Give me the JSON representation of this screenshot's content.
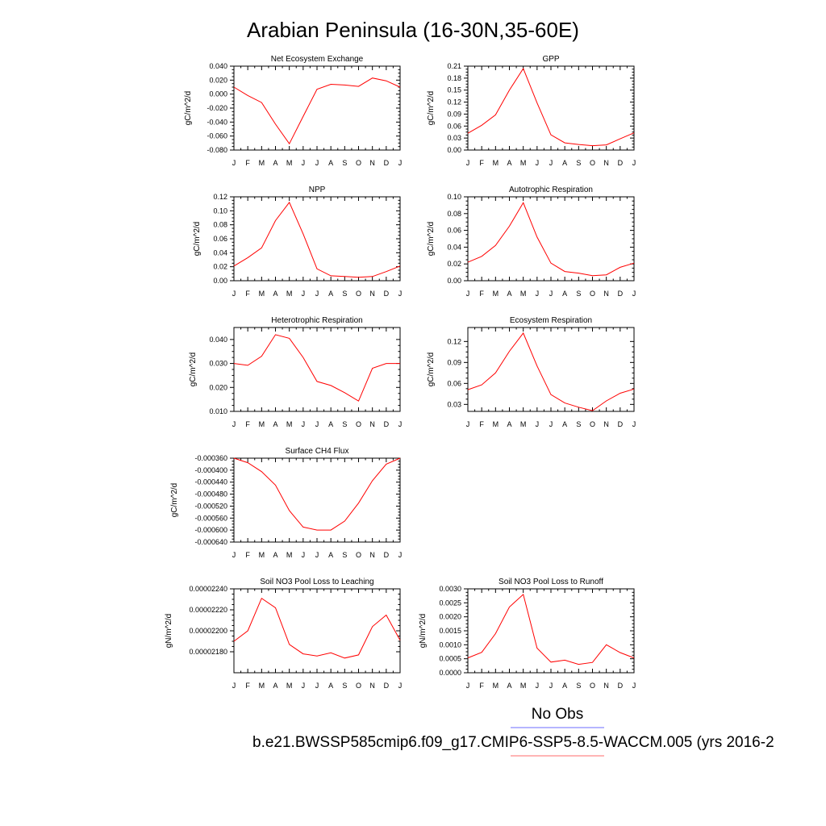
{
  "page": {
    "title": "Arabian Peninsula (16-30N,35-60E)",
    "legend": {
      "obs_label": "No Obs",
      "obs_color": "#6b6bff",
      "model_color": "#ff6b6b"
    },
    "caption": "b.e21.BWSSP585cmip6.f09_g17.CMIP6-SSP5-8.5-WACCM.005 (yrs 2016-2"
  },
  "chart_data": [
    {
      "type": "line",
      "title": "Net Ecosystem Exchange",
      "ylabel": "gC/m^2/d",
      "x": [
        "J",
        "F",
        "M",
        "A",
        "M",
        "J",
        "J",
        "A",
        "S",
        "O",
        "N",
        "D",
        "J"
      ],
      "ylim": [
        -0.08,
        0.04
      ],
      "yticks": [
        -0.08,
        -0.06,
        -0.04,
        -0.02,
        0.0,
        0.02,
        0.04
      ],
      "ytick_labels": [
        "-0.080",
        "-0.060",
        "-0.040",
        "-0.020",
        "0.000",
        "0.020",
        "0.040"
      ],
      "series": [
        {
          "color": "#ff0000",
          "values": [
            0.01,
            -0.002,
            -0.012,
            -0.043,
            -0.071,
            -0.032,
            0.007,
            0.014,
            0.013,
            0.011,
            0.023,
            0.019,
            0.01
          ]
        }
      ]
    },
    {
      "type": "line",
      "title": "GPP",
      "ylabel": "gC/m^2/d",
      "x": [
        "J",
        "F",
        "M",
        "A",
        "M",
        "J",
        "J",
        "A",
        "S",
        "O",
        "N",
        "D",
        "J"
      ],
      "ylim": [
        0.0,
        0.21
      ],
      "yticks": [
        0.0,
        0.03,
        0.06,
        0.09,
        0.12,
        0.15,
        0.18,
        0.21
      ],
      "ytick_labels": [
        "0.00",
        "0.03",
        "0.06",
        "0.09",
        "0.12",
        "0.15",
        "0.18",
        "0.21"
      ],
      "series": [
        {
          "color": "#ff0000",
          "values": [
            0.042,
            0.062,
            0.088,
            0.15,
            0.204,
            0.118,
            0.038,
            0.018,
            0.014,
            0.011,
            0.013,
            0.028,
            0.043
          ]
        }
      ]
    },
    {
      "type": "line",
      "title": "NPP",
      "ylabel": "gC/m^2/d",
      "x": [
        "J",
        "F",
        "M",
        "A",
        "M",
        "J",
        "J",
        "A",
        "S",
        "O",
        "N",
        "D",
        "J"
      ],
      "ylim": [
        0.0,
        0.12
      ],
      "yticks": [
        0.0,
        0.02,
        0.04,
        0.06,
        0.08,
        0.1,
        0.12
      ],
      "ytick_labels": [
        "0.00",
        "0.02",
        "0.04",
        "0.06",
        "0.08",
        "0.10",
        "0.12"
      ],
      "series": [
        {
          "color": "#ff0000",
          "values": [
            0.021,
            0.033,
            0.047,
            0.086,
            0.112,
            0.067,
            0.017,
            0.007,
            0.006,
            0.005,
            0.006,
            0.013,
            0.021
          ]
        }
      ]
    },
    {
      "type": "line",
      "title": "Autotrophic Respiration",
      "ylabel": "gC/m^2/d",
      "x": [
        "J",
        "F",
        "M",
        "A",
        "M",
        "J",
        "J",
        "A",
        "S",
        "O",
        "N",
        "D",
        "J"
      ],
      "ylim": [
        0.0,
        0.1
      ],
      "yticks": [
        0.0,
        0.02,
        0.04,
        0.06,
        0.08,
        0.1
      ],
      "ytick_labels": [
        "0.00",
        "0.02",
        "0.04",
        "0.06",
        "0.08",
        "0.10"
      ],
      "series": [
        {
          "color": "#ff0000",
          "values": [
            0.022,
            0.029,
            0.042,
            0.065,
            0.093,
            0.052,
            0.021,
            0.011,
            0.009,
            0.006,
            0.007,
            0.016,
            0.021
          ]
        }
      ]
    },
    {
      "type": "line",
      "title": "Heterotrophic Respiration",
      "ylabel": "gC/m^2/d",
      "x": [
        "J",
        "F",
        "M",
        "A",
        "M",
        "J",
        "J",
        "A",
        "S",
        "O",
        "N",
        "D",
        "J"
      ],
      "ylim": [
        0.01,
        0.045
      ],
      "yticks": [
        0.01,
        0.02,
        0.03,
        0.04
      ],
      "ytick_labels": [
        "0.010",
        "0.020",
        "0.030",
        "0.040"
      ],
      "series": [
        {
          "color": "#ff0000",
          "values": [
            0.03,
            0.0292,
            0.033,
            0.042,
            0.0405,
            0.0325,
            0.0225,
            0.0208,
            0.0178,
            0.0143,
            0.028,
            0.03,
            0.03
          ]
        }
      ]
    },
    {
      "type": "line",
      "title": "Ecosystem Respiration",
      "ylabel": "gC/m^2/d",
      "x": [
        "J",
        "F",
        "M",
        "A",
        "M",
        "J",
        "J",
        "A",
        "S",
        "O",
        "N",
        "D",
        "J"
      ],
      "ylim": [
        0.02,
        0.14
      ],
      "yticks": [
        0.03,
        0.06,
        0.09,
        0.12
      ],
      "ytick_labels": [
        "0.03",
        "0.06",
        "0.09",
        "0.12"
      ],
      "series": [
        {
          "color": "#ff0000",
          "values": [
            0.051,
            0.058,
            0.075,
            0.106,
            0.132,
            0.085,
            0.044,
            0.032,
            0.026,
            0.021,
            0.035,
            0.046,
            0.052
          ]
        }
      ]
    },
    {
      "type": "line",
      "title": "Surface CH4 Flux",
      "ylabel": "gC/m^2/d",
      "x": [
        "J",
        "F",
        "M",
        "A",
        "M",
        "J",
        "J",
        "A",
        "S",
        "O",
        "N",
        "D",
        "J"
      ],
      "ylim": [
        -0.00064,
        -0.00036
      ],
      "yticks": [
        -0.00064,
        -0.0006,
        -0.00056,
        -0.00052,
        -0.00048,
        -0.00044,
        -0.0004,
        -0.00036
      ],
      "ytick_labels": [
        "-0.000640",
        "-0.000600",
        "-0.000560",
        "-0.000520",
        "-0.000480",
        "-0.000440",
        "-0.000400",
        "-0.000360"
      ],
      "series": [
        {
          "color": "#ff0000",
          "values": [
            -0.00036,
            -0.000375,
            -0.000405,
            -0.00045,
            -0.000535,
            -0.00059,
            -0.0006,
            -0.0006,
            -0.00057,
            -0.00051,
            -0.000435,
            -0.00038,
            -0.00036
          ]
        }
      ]
    },
    {
      "type": "line",
      "title": "Soil NO3 Pool Loss to Leaching",
      "ylabel": "gN/m^2/d",
      "x": [
        "J",
        "F",
        "M",
        "A",
        "M",
        "J",
        "J",
        "A",
        "S",
        "O",
        "N",
        "D",
        "J"
      ],
      "ylim": [
        2.16e-05,
        2.24e-05
      ],
      "yticks": [
        2.18e-05,
        2.2e-05,
        2.22e-05,
        2.24e-05
      ],
      "ytick_labels": [
        "0.00002180",
        "0.00002200",
        "0.00002220",
        "0.00002240"
      ],
      "series": [
        {
          "color": "#ff0000",
          "values": [
            2.19e-05,
            2.2e-05,
            2.231e-05,
            2.222e-05,
            2.187e-05,
            2.178e-05,
            2.176e-05,
            2.179e-05,
            2.174e-05,
            2.177e-05,
            2.204e-05,
            2.215e-05,
            2.191e-05
          ]
        }
      ]
    },
    {
      "type": "line",
      "title": "Soil NO3 Pool Loss to Runoff",
      "ylabel": "gN/m^2/d",
      "x": [
        "J",
        "F",
        "M",
        "A",
        "M",
        "J",
        "J",
        "A",
        "S",
        "O",
        "N",
        "D",
        "J"
      ],
      "ylim": [
        0.0,
        0.003
      ],
      "yticks": [
        0.0,
        0.0005,
        0.001,
        0.0015,
        0.002,
        0.0025,
        0.003
      ],
      "ytick_labels": [
        "0.0000",
        "0.0005",
        "0.0010",
        "0.0015",
        "0.0020",
        "0.0025",
        "0.0030"
      ],
      "series": [
        {
          "color": "#ff0000",
          "values": [
            0.00053,
            0.00073,
            0.0014,
            0.00235,
            0.0028,
            0.00088,
            0.00038,
            0.00045,
            0.0003,
            0.00037,
            0.001,
            0.00072,
            0.00053
          ]
        }
      ]
    }
  ]
}
